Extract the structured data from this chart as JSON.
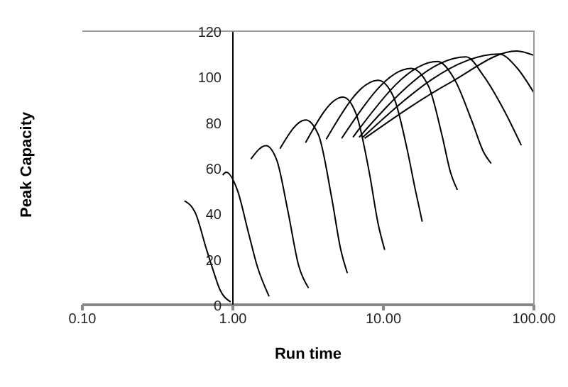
{
  "chart_data": {
    "type": "line",
    "xlabel": "Run time",
    "ylabel": "Peak Capacity",
    "log": "x",
    "marker": "none",
    "line_style": "solid",
    "xlim": [
      0.1,
      100
    ],
    "xticks": [
      {
        "value": 0.1,
        "label": "0.10"
      },
      {
        "value": 1,
        "label": "1.00"
      },
      {
        "value": 10,
        "label": "10.00"
      },
      {
        "value": 100,
        "label": "100.00"
      }
    ],
    "ylim": [
      0,
      120
    ],
    "yticks": [
      0,
      20,
      40,
      60,
      80,
      100,
      120
    ],
    "series": [
      {
        "color": "#000000",
        "x": [
          0.477,
          0.564,
          0.667,
          0.739,
          0.817,
          0.967
        ],
        "values": [
          45.6,
          40.2,
          24.4,
          15.2,
          6.9,
          1.3
        ]
      },
      {
        "color": "#000000",
        "x": [
          0.856,
          0.904,
          1.07,
          1.266,
          1.45,
          1.74
        ],
        "values": [
          56.9,
          58.1,
          50.4,
          31.9,
          17,
          3.7
        ]
      },
      {
        "color": "#000000",
        "x": [
          1.318,
          1.657,
          1.96,
          2.32,
          2.74,
          3.18
        ],
        "values": [
          63.9,
          69.8,
          63.3,
          41.1,
          17,
          7.4
        ]
      },
      {
        "color": "#000000",
        "x": [
          2.055,
          3.04,
          3.71,
          4.54,
          5.2,
          5.76
        ],
        "values": [
          68.5,
          81.1,
          74.4,
          46.7,
          24.4,
          13.9
        ]
      },
      {
        "color": "#000000",
        "x": [
          3.04,
          5.39,
          6.59,
          8.07,
          9.22,
          10.2
        ],
        "values": [
          71.1,
          91.1,
          83.7,
          57.8,
          35.6,
          24.1
        ]
      },
      {
        "color": "#000000",
        "x": [
          4.17,
          9.22,
          11.7,
          14.3,
          16.3,
          18.1
        ],
        "values": [
          72.6,
          98.5,
          91.1,
          68.9,
          50.4,
          36.5
        ]
      },
      {
        "color": "#000000",
        "x": [
          5.28,
          15.3,
          20,
          24.5,
          28,
          31
        ],
        "values": [
          73,
          103.7,
          95.7,
          74.4,
          57.8,
          50.4
        ]
      },
      {
        "color": "#000000",
        "x": [
          6.28,
          22.9,
          29.9,
          39,
          46.3,
          52
        ],
        "values": [
          73.5,
          106.7,
          98.5,
          80,
          67,
          62
        ]
      },
      {
        "color": "#000000",
        "x": [
          6.9,
          35.4,
          46.3,
          63,
          82.4
        ],
        "values": [
          73.5,
          108.7,
          100.4,
          85.6,
          70
        ]
      },
      {
        "color": "#000000",
        "x": [
          7.3,
          58.8,
          77,
          100
        ],
        "values": [
          73.5,
          110,
          104,
          93
        ]
      },
      {
        "color": "#000000",
        "x": [
          7.5,
          28,
          77,
          100
        ],
        "values": [
          73,
          97.6,
          111.3,
          109.4
        ]
      }
    ]
  }
}
